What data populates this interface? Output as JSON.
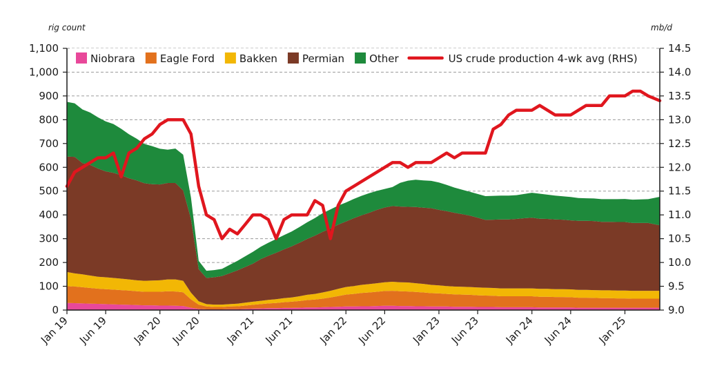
{
  "chart_data": {
    "type": "area",
    "y_left_label": "rig count",
    "y_right_label": "mb/d",
    "y_left_ticks": [
      "0",
      "100",
      "200",
      "300",
      "400",
      "500",
      "600",
      "700",
      "800",
      "900",
      "1,000",
      "1,100"
    ],
    "y_right_ticks": [
      "9.0",
      "9.5",
      "10.0",
      "10.5",
      "11.0",
      "11.5",
      "12.0",
      "12.5",
      "13.0",
      "13.5",
      "14.0",
      "14.5"
    ],
    "ylim_left": [
      0,
      1100
    ],
    "ylim_right": [
      9.0,
      14.5
    ],
    "x_tick_labels": [
      "Jan 19",
      "Jun 19",
      "Jan 20",
      "Jun 20",
      "Jan 21",
      "Jun 21",
      "Jan 22",
      "Jun 22",
      "Jan 23",
      "Jun 23",
      "Jan 24",
      "Jun 24",
      "Jan 25"
    ],
    "x_tick_months": [
      0,
      5,
      12,
      17,
      24,
      29,
      36,
      41,
      48,
      53,
      60,
      65,
      72
    ],
    "x_range_months": [
      0,
      76.5
    ],
    "grid": "horizontal dashed",
    "legend_position": "top",
    "colors": {
      "Niobrara": "#e8489a",
      "Eagle Ford": "#e2711d",
      "Bakken": "#f2b705",
      "Permian": "#7b3a26",
      "Other": "#1e8a3c",
      "line": "#e0161e"
    },
    "legend": [
      {
        "label": "Niobrara",
        "kind": "box",
        "color": "#e8489a"
      },
      {
        "label": "Eagle Ford",
        "kind": "box",
        "color": "#e2711d"
      },
      {
        "label": "Bakken",
        "kind": "box",
        "color": "#f2b705"
      },
      {
        "label": "Permian",
        "kind": "box",
        "color": "#7b3a26"
      },
      {
        "label": "Other",
        "kind": "box",
        "color": "#1e8a3c"
      },
      {
        "label": "US crude production 4-wk avg (RHS)",
        "kind": "line",
        "color": "#e0161e"
      }
    ],
    "month_index": [
      0,
      1,
      2,
      3,
      4,
      5,
      6,
      7,
      8,
      9,
      10,
      11,
      12,
      13,
      14,
      15,
      16,
      17,
      18,
      19,
      20,
      21,
      22,
      23,
      24,
      25,
      26,
      27,
      28,
      29,
      30,
      31,
      32,
      33,
      34,
      35,
      36,
      37,
      38,
      39,
      40,
      41,
      42,
      43,
      44,
      45,
      46,
      47,
      48,
      49,
      50,
      51,
      52,
      53,
      54,
      55,
      56,
      57,
      58,
      59,
      60,
      61,
      62,
      63,
      64,
      65,
      66,
      67,
      68,
      69,
      70,
      71,
      72,
      73,
      74,
      75,
      76.5
    ],
    "series": [
      {
        "name": "Niobrara",
        "values": [
          30,
          29,
          28,
          27,
          26,
          25,
          24,
          23,
          22,
          21,
          20,
          20,
          19,
          19,
          18,
          17,
          10,
          5,
          3,
          3,
          3,
          4,
          4,
          5,
          6,
          7,
          8,
          8,
          9,
          9,
          10,
          11,
          11,
          12,
          13,
          14,
          15,
          15,
          16,
          16,
          17,
          18,
          18,
          17,
          17,
          16,
          16,
          15,
          15,
          15,
          14,
          14,
          14,
          13,
          13,
          13,
          12,
          12,
          12,
          12,
          12,
          11,
          11,
          11,
          11,
          11,
          10,
          10,
          10,
          10,
          10,
          10,
          10,
          10,
          10,
          10,
          10
        ]
      },
      {
        "name": "Eagle Ford",
        "values": [
          70,
          70,
          68,
          66,
          64,
          63,
          62,
          61,
          60,
          58,
          57,
          57,
          58,
          60,
          60,
          58,
          35,
          18,
          12,
          10,
          10,
          11,
          12,
          14,
          16,
          18,
          20,
          22,
          24,
          26,
          28,
          31,
          33,
          36,
          40,
          45,
          50,
          53,
          56,
          58,
          60,
          62,
          63,
          62,
          61,
          60,
          58,
          56,
          55,
          53,
          52,
          51,
          50,
          49,
          48,
          47,
          46,
          46,
          46,
          46,
          46,
          45,
          45,
          44,
          44,
          43,
          42,
          42,
          41,
          40,
          40,
          39,
          39,
          38,
          38,
          38,
          38
        ]
      },
      {
        "name": "Bakken",
        "values": [
          60,
          55,
          54,
          52,
          50,
          50,
          49,
          48,
          47,
          46,
          46,
          47,
          48,
          50,
          51,
          48,
          28,
          14,
          10,
          10,
          10,
          10,
          11,
          12,
          13,
          14,
          15,
          16,
          17,
          18,
          20,
          22,
          24,
          26,
          28,
          30,
          32,
          33,
          34,
          35,
          36,
          37,
          38,
          38,
          38,
          37,
          36,
          35,
          34,
          33,
          33,
          33,
          33,
          33,
          33,
          33,
          33,
          33,
          33,
          33,
          33,
          33,
          33,
          33,
          33,
          33,
          33,
          33,
          33,
          33,
          33,
          33,
          33,
          33,
          33,
          33,
          33
        ]
      },
      {
        "name": "Permian",
        "values": [
          485,
          490,
          468,
          465,
          455,
          445,
          442,
          435,
          425,
          420,
          410,
          405,
          403,
          405,
          405,
          380,
          310,
          135,
          110,
          115,
          120,
          130,
          140,
          150,
          160,
          175,
          185,
          195,
          205,
          215,
          225,
          235,
          245,
          255,
          262,
          270,
          275,
          285,
          292,
          300,
          308,
          314,
          318,
          318,
          318,
          320,
          320,
          322,
          317,
          315,
          310,
          305,
          300,
          293,
          285,
          287,
          290,
          290,
          292,
          295,
          297,
          295,
          294,
          293,
          292,
          290,
          290,
          290,
          290,
          288,
          288,
          288,
          288,
          285,
          285,
          285,
          275
        ]
      },
      {
        "name": "Other",
        "values": [
          230,
          225,
          225,
          220,
          215,
          210,
          205,
          195,
          185,
          175,
          165,
          160,
          150,
          140,
          145,
          150,
          90,
          35,
          30,
          30,
          30,
          35,
          40,
          45,
          50,
          52,
          55,
          58,
          60,
          62,
          66,
          70,
          74,
          78,
          80,
          80,
          80,
          81,
          82,
          82,
          80,
          78,
          80,
          100,
          110,
          115,
          115,
          115,
          115,
          110,
          106,
          103,
          100,
          100,
          100,
          100,
          100,
          100,
          100,
          102,
          105,
          105,
          102,
          100,
          98,
          98,
          96,
          95,
          95,
          95,
          95,
          96,
          97,
          98,
          99,
          100,
          120
        ]
      },
      {
        "name": "US crude production 4-wk avg (RHS)",
        "axis": "right",
        "values": [
          11.6,
          11.9,
          12.0,
          12.1,
          12.2,
          12.2,
          12.3,
          11.8,
          12.3,
          12.4,
          12.6,
          12.7,
          12.9,
          13.0,
          13.0,
          13.0,
          12.7,
          11.6,
          11.0,
          10.9,
          10.5,
          10.7,
          10.6,
          10.8,
          11.0,
          11.0,
          10.9,
          10.5,
          10.9,
          11.0,
          11.0,
          11.0,
          11.3,
          11.2,
          10.5,
          11.2,
          11.5,
          11.6,
          11.7,
          11.8,
          11.9,
          12.0,
          12.1,
          12.1,
          12.0,
          12.1,
          12.1,
          12.1,
          12.2,
          12.3,
          12.2,
          12.3,
          12.3,
          12.3,
          12.3,
          12.8,
          12.9,
          13.1,
          13.2,
          13.2,
          13.2,
          13.3,
          13.2,
          13.1,
          13.1,
          13.1,
          13.2,
          13.3,
          13.3,
          13.3,
          13.5,
          13.5,
          13.5,
          13.6,
          13.6,
          13.5,
          13.4
        ]
      }
    ]
  }
}
